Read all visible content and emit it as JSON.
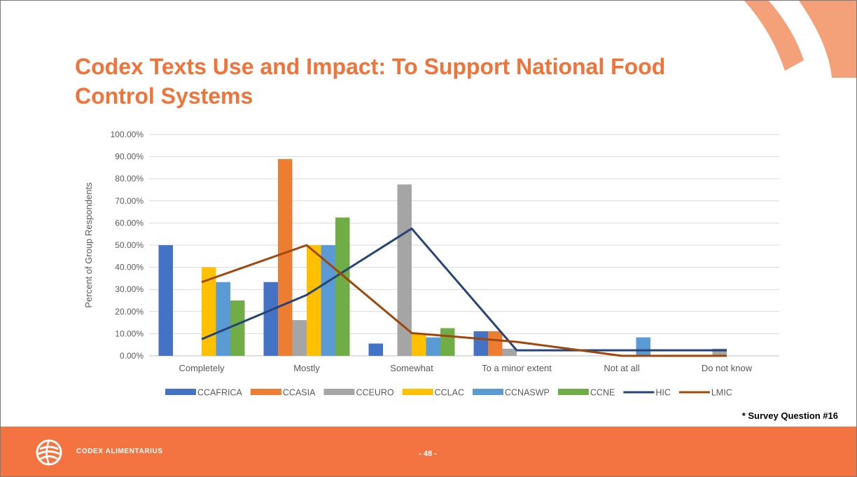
{
  "slide": {
    "title": "Codex Texts Use and Impact: To Support National Food Control Systems",
    "footnote": "* Survey Question #16",
    "org_name": "CODEX ALIMENTARIUS",
    "page_number": "- 48 -",
    "colors": {
      "accent": "#f0733a",
      "footer": "#f37341"
    }
  },
  "chart_data": {
    "type": "bar",
    "ylabel": "Percent of Group Respondents",
    "xlabel": "",
    "ylim": [
      0,
      100
    ],
    "yticks": [
      "0.00%",
      "10.00%",
      "20.00%",
      "30.00%",
      "40.00%",
      "50.00%",
      "60.00%",
      "70.00%",
      "80.00%",
      "90.00%",
      "100.00%"
    ],
    "grid": true,
    "legend_position": "bottom",
    "categories": [
      "Completely",
      "Mostly",
      "Somewhat",
      "To a minor extent",
      "Not at all",
      "Do not know"
    ],
    "series": [
      {
        "name": "CCAFRICA",
        "kind": "bar",
        "color": "#4472c4",
        "values": [
          50,
          33.33,
          5.56,
          11.11,
          0,
          0
        ]
      },
      {
        "name": "CCASIA",
        "kind": "bar",
        "color": "#ed7d31",
        "values": [
          0,
          88.89,
          0,
          11.11,
          0,
          0
        ]
      },
      {
        "name": "CCEURO",
        "kind": "bar",
        "color": "#a5a5a5",
        "values": [
          0,
          16.13,
          77.42,
          3.23,
          0,
          3.23
        ]
      },
      {
        "name": "CCLAC",
        "kind": "bar",
        "color": "#ffc000",
        "values": [
          40,
          50,
          10,
          0,
          0,
          0
        ]
      },
      {
        "name": "CCNASWP",
        "kind": "bar",
        "color": "#5b9bd5",
        "values": [
          33.33,
          50,
          8.33,
          0,
          8.33,
          0
        ]
      },
      {
        "name": "CCNE",
        "kind": "bar",
        "color": "#70ad47",
        "values": [
          25,
          62.5,
          12.5,
          0,
          0,
          0
        ]
      },
      {
        "name": "HIC",
        "kind": "line",
        "color": "#264478",
        "values": [
          7.5,
          27.5,
          57.5,
          2.5,
          2.5,
          2.5
        ]
      },
      {
        "name": "LMIC",
        "kind": "line",
        "color": "#9e480e",
        "values": [
          33.3,
          50,
          10.3,
          6.3,
          0,
          0
        ]
      }
    ]
  }
}
